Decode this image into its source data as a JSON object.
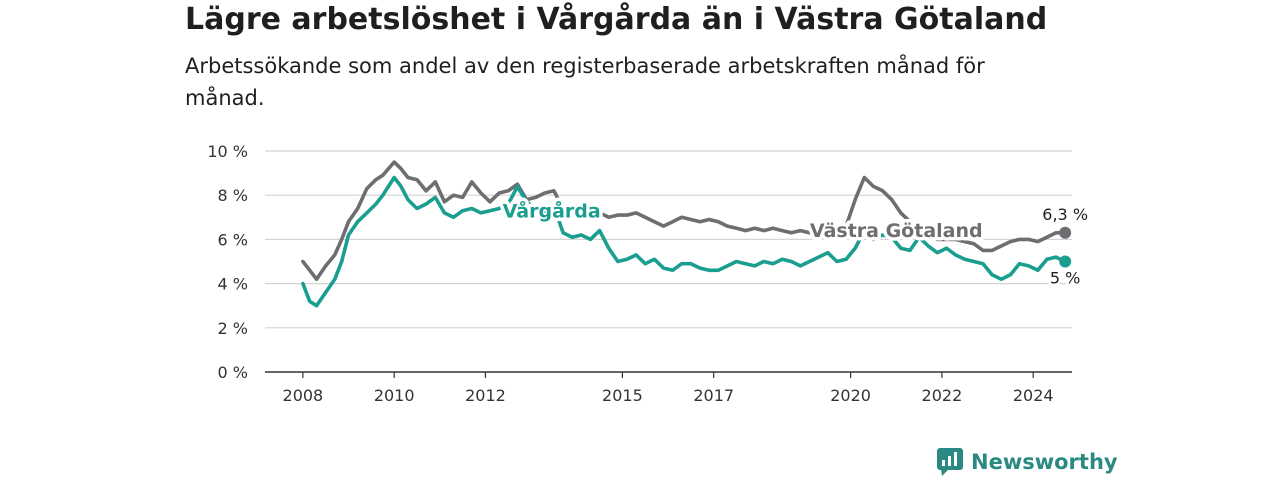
{
  "header": {
    "title": "Lägre arbetslöshet i Vårgårda än i Västra Götaland",
    "subtitle": "Arbetssökande som andel av den registerbaserade arbetskraften månad för månad."
  },
  "branding": {
    "name": "Newsworthy",
    "icon": "newsworthy-logo-icon",
    "color": "#2a8a83"
  },
  "chart_data": {
    "type": "line",
    "title": "Lägre arbetslöshet i Vårgårda än i Västra Götaland",
    "subtitle": "Arbetssökande som andel av den registerbaserade arbetskraften månad för månad.",
    "x_ticks": [
      "2008",
      "2010",
      "2012",
      "2015",
      "2017",
      "2020",
      "2022",
      "2024"
    ],
    "x_tick_values": [
      2008,
      2010,
      2012,
      2015,
      2017,
      2020,
      2022,
      2024
    ],
    "y_ticks": [
      "0 %",
      "2 %",
      "4 %",
      "6 %",
      "8 %",
      "10 %"
    ],
    "y_tick_values": [
      0,
      2,
      4,
      6,
      8,
      10
    ],
    "xlim": [
      2007.17,
      2024.85
    ],
    "ylim": [
      0,
      10
    ],
    "grid": true,
    "legend": "inline labels",
    "series": [
      {
        "name": "Västra Götaland",
        "color": "#6e6e72",
        "end_label": "6,3 %",
        "inline_label_at": [
          2021,
          6.1
        ],
        "x": [
          2008.0,
          2008.15,
          2008.3,
          2008.5,
          2008.7,
          2008.85,
          2009.0,
          2009.2,
          2009.4,
          2009.6,
          2009.75,
          2010.0,
          2010.15,
          2010.3,
          2010.5,
          2010.7,
          2010.9,
          2011.1,
          2011.3,
          2011.5,
          2011.7,
          2011.9,
          2012.1,
          2012.3,
          2012.5,
          2012.7,
          2012.9,
          2013.1,
          2013.3,
          2013.5,
          2013.7,
          2013.9,
          2014.1,
          2014.3,
          2014.5,
          2014.7,
          2014.9,
          2015.1,
          2015.3,
          2015.5,
          2015.7,
          2015.9,
          2016.1,
          2016.3,
          2016.5,
          2016.7,
          2016.9,
          2017.1,
          2017.3,
          2017.5,
          2017.7,
          2017.9,
          2018.1,
          2018.3,
          2018.5,
          2018.7,
          2018.9,
          2019.1,
          2019.3,
          2019.5,
          2019.7,
          2019.9,
          2020.1,
          2020.3,
          2020.5,
          2020.7,
          2020.9,
          2021.1,
          2021.3,
          2021.5,
          2021.7,
          2021.9,
          2022.1,
          2022.3,
          2022.5,
          2022.7,
          2022.9,
          2023.1,
          2023.3,
          2023.5,
          2023.7,
          2023.9,
          2024.1,
          2024.3,
          2024.5,
          2024.7
        ],
        "y": [
          5.0,
          4.6,
          4.2,
          4.8,
          5.3,
          6.0,
          6.8,
          7.4,
          8.3,
          8.7,
          8.9,
          9.5,
          9.2,
          8.8,
          8.7,
          8.2,
          8.6,
          7.7,
          8.0,
          7.9,
          8.6,
          8.1,
          7.7,
          8.1,
          8.2,
          8.5,
          7.8,
          7.9,
          8.1,
          8.2,
          7.4,
          7.4,
          7.5,
          7.5,
          7.2,
          7.0,
          7.1,
          7.1,
          7.2,
          7.0,
          6.8,
          6.6,
          6.8,
          7.0,
          6.9,
          6.8,
          6.9,
          6.8,
          6.6,
          6.5,
          6.4,
          6.5,
          6.4,
          6.5,
          6.4,
          6.3,
          6.4,
          6.3,
          6.4,
          6.4,
          6.5,
          6.6,
          7.8,
          8.8,
          8.4,
          8.2,
          7.8,
          7.2,
          6.8,
          6.6,
          6.4,
          6.0,
          6.0,
          6.0,
          5.9,
          5.8,
          5.5,
          5.5,
          5.7,
          5.9,
          6.0,
          6.0,
          5.9,
          6.1,
          6.3,
          6.3
        ]
      },
      {
        "name": "Vårgårda",
        "color": "#1a9e8f",
        "end_label": "5 %",
        "inline_label_at": [
          2013.45,
          7.0
        ],
        "x": [
          2008.0,
          2008.15,
          2008.3,
          2008.5,
          2008.7,
          2008.85,
          2009.0,
          2009.2,
          2009.4,
          2009.6,
          2009.75,
          2010.0,
          2010.15,
          2010.3,
          2010.5,
          2010.7,
          2010.9,
          2011.1,
          2011.3,
          2011.5,
          2011.7,
          2011.9,
          2012.1,
          2012.3,
          2012.5,
          2012.7,
          2012.9,
          2013.1,
          2013.3,
          2013.5,
          2013.7,
          2013.9,
          2014.1,
          2014.3,
          2014.5,
          2014.7,
          2014.9,
          2015.1,
          2015.3,
          2015.5,
          2015.7,
          2015.9,
          2016.1,
          2016.3,
          2016.5,
          2016.7,
          2016.9,
          2017.1,
          2017.3,
          2017.5,
          2017.7,
          2017.9,
          2018.1,
          2018.3,
          2018.5,
          2018.7,
          2018.9,
          2019.1,
          2019.3,
          2019.5,
          2019.7,
          2019.9,
          2020.1,
          2020.3,
          2020.5,
          2020.7,
          2020.9,
          2021.1,
          2021.3,
          2021.5,
          2021.7,
          2021.9,
          2022.1,
          2022.3,
          2022.5,
          2022.7,
          2022.9,
          2023.1,
          2023.3,
          2023.5,
          2023.7,
          2023.9,
          2024.1,
          2024.3,
          2024.5,
          2024.7
        ],
        "y": [
          4.0,
          3.2,
          3.0,
          3.6,
          4.2,
          5.0,
          6.2,
          6.8,
          7.2,
          7.6,
          8.0,
          8.8,
          8.4,
          7.8,
          7.4,
          7.6,
          7.9,
          7.2,
          7.0,
          7.3,
          7.4,
          7.2,
          7.3,
          7.4,
          7.6,
          8.4,
          7.7,
          7.4,
          7.2,
          7.5,
          6.3,
          6.1,
          6.2,
          6.0,
          6.4,
          5.6,
          5.0,
          5.1,
          5.3,
          4.9,
          5.1,
          4.7,
          4.6,
          4.9,
          4.9,
          4.7,
          4.6,
          4.6,
          4.8,
          5.0,
          4.9,
          4.8,
          5.0,
          4.9,
          5.1,
          5.0,
          4.8,
          5.0,
          5.2,
          5.4,
          5.0,
          5.1,
          5.6,
          6.4,
          6.0,
          6.2,
          6.1,
          5.6,
          5.5,
          6.1,
          5.7,
          5.4,
          5.6,
          5.3,
          5.1,
          5.0,
          4.9,
          4.4,
          4.2,
          4.4,
          4.9,
          4.8,
          4.6,
          5.1,
          5.2,
          5.0
        ]
      }
    ]
  }
}
